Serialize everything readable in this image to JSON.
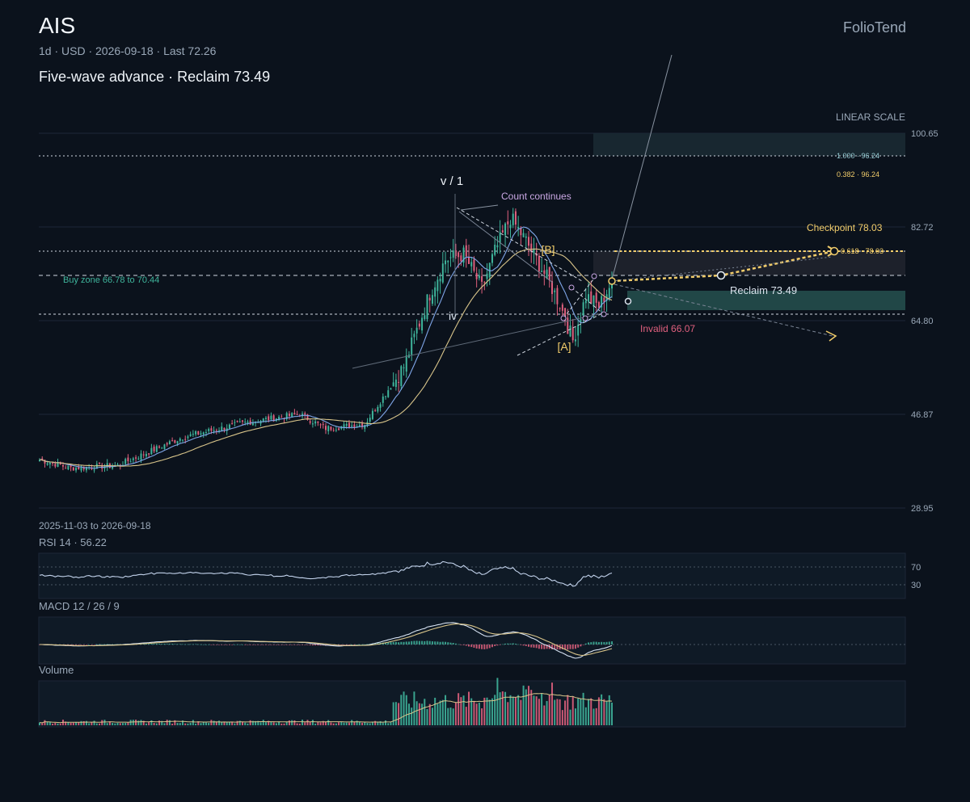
{
  "header": {
    "ticker": "AIS",
    "meta": "1d · USD · 2026-09-18 · Last 72.26",
    "headline": "Five-wave advance · Reclaim 73.49",
    "brand": "FolioTend",
    "date_range": "2025-11-03 to 2026-09-18"
  },
  "colors": {
    "background": "#0b121c",
    "up": "#3fb59c",
    "down": "#e0607e",
    "ma_fast": "#7fa6e8",
    "ma_slow": "#d8c48a",
    "accent": "#f2cd6b",
    "annotation": "#c9a7e3"
  },
  "chart_data": [
    {
      "type": "candlestick",
      "title": "",
      "scale_label": "LINEAR SCALE",
      "y_ticks": [
        "100.65",
        "82.72",
        "64.80",
        "46.87",
        "28.95"
      ],
      "ylim": [
        28.95,
        100.65
      ],
      "sessions": 221,
      "last": 72.26,
      "ohlc_anchors": [
        {
          "i": 0,
          "close": 38.2
        },
        {
          "i": 12,
          "close": 36.6
        },
        {
          "i": 30,
          "close": 37.1
        },
        {
          "i": 55,
          "close": 42.5
        },
        {
          "i": 80,
          "close": 45.4
        },
        {
          "i": 100,
          "close": 46.9
        },
        {
          "i": 110,
          "close": 44.2
        },
        {
          "i": 125,
          "close": 45.0
        },
        {
          "i": 140,
          "close": 56.0
        },
        {
          "i": 150,
          "close": 70.0
        },
        {
          "i": 156,
          "close": 76.5
        },
        {
          "i": 163,
          "close": 77.5
        },
        {
          "i": 170,
          "close": 71.0
        },
        {
          "i": 175,
          "close": 78.0
        },
        {
          "i": 181,
          "close": 84.5
        },
        {
          "i": 187,
          "close": 80.0
        },
        {
          "i": 195,
          "close": 73.0
        },
        {
          "i": 200,
          "close": 68.0
        },
        {
          "i": 205,
          "close": 61.0
        },
        {
          "i": 210,
          "close": 69.5
        },
        {
          "i": 215,
          "close": 67.5
        },
        {
          "i": 220,
          "close": 72.26
        }
      ],
      "levels": [
        {
          "label": "1.000 · 96.24",
          "value": 96.24
        },
        {
          "label": "0.382 · 96.24",
          "value": 96.24
        },
        {
          "label": "0.618 · 78.03",
          "value": 78.03
        },
        {
          "label": "Reclaim 73.49",
          "value": 73.49
        },
        {
          "label": "Invalid 66.07",
          "value": 66.07
        }
      ],
      "zones": [
        {
          "label": "Buy zone 66.78 to 70.44",
          "from": 66.78,
          "to": 70.44
        },
        {
          "label": "",
          "from": 96.24,
          "to": 100.65
        },
        {
          "label": "",
          "from": 73.49,
          "to": 78.03
        }
      ],
      "annotations": [
        {
          "label": "v / 1",
          "price": 88.8
        },
        {
          "label": "iv",
          "price": 65.5
        },
        {
          "label": "Count continues",
          "price": 88.2
        },
        {
          "label": "[B]",
          "price": 77.2
        },
        {
          "label": "[A]",
          "price": 60.5
        },
        {
          "label": "Checkpoint 78.03",
          "price": 78.03
        }
      ],
      "moving_averages": [
        {
          "kind": "fast",
          "color": "#7fa6e8"
        },
        {
          "kind": "slow",
          "color": "#d8c48a"
        }
      ]
    },
    {
      "type": "line",
      "title": "RSI 14 · 56.22",
      "value": 56.22,
      "ylim": [
        0,
        100
      ],
      "y_ticks": [
        "70",
        "30"
      ]
    },
    {
      "type": "line",
      "title": "MACD 12 / 26 / 9",
      "series": [
        {
          "name": "MACD"
        },
        {
          "name": "Signal"
        },
        {
          "name": "Histogram"
        }
      ]
    },
    {
      "type": "bar",
      "title": "Volume"
    }
  ]
}
